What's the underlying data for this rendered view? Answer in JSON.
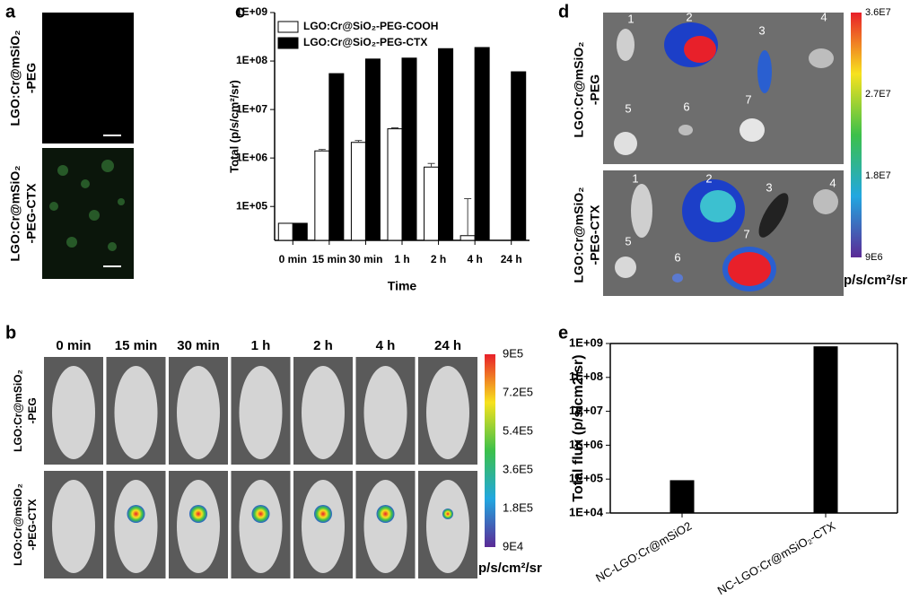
{
  "panel_labels": [
    "a",
    "b",
    "c",
    "d",
    "e"
  ],
  "panel_a": {
    "row_labels": [
      [
        "LGO:Cr@mSiO₂",
        "-PEG"
      ],
      [
        "LGO:Cr@mSiO₂",
        "-PEG-CTX"
      ]
    ]
  },
  "panel_b": {
    "columns": [
      "0 min",
      "15 min",
      "30 min",
      "1 h",
      "2 h",
      "4 h",
      "24 h"
    ],
    "row_labels": [
      [
        "LGO:Cr@mSiO₂",
        "-PEG"
      ],
      [
        "LGO:Cr@mSiO₂",
        "-PEG-CTX"
      ]
    ],
    "colorbar_ticks": [
      "9E5",
      "7.2E5",
      "5.4E5",
      "3.6E5",
      "1.8E5",
      "9E4"
    ],
    "colorbar_unit": "p/s/cm²/sr"
  },
  "panel_d": {
    "row_labels": [
      [
        "LGO:Cr@mSiO₂",
        "-PEG"
      ],
      [
        "LGO:Cr@mSiO₂",
        "-PEG-CTX"
      ]
    ],
    "organ_numbers_top": [
      "1",
      "2",
      "3",
      "4",
      "5",
      "6",
      "7"
    ],
    "organ_numbers_bottom": [
      "1",
      "2",
      "3",
      "4",
      "5",
      "6",
      "7"
    ],
    "colorbar_ticks": [
      "3.6E7",
      "2.7E7",
      "1.8E7",
      "9E6"
    ],
    "colorbar_unit": "p/s/cm²/sr"
  },
  "chart_data": [
    {
      "type": "bar",
      "log": true,
      "xlabel": "Time",
      "ylabel": "Total (p/s/cm²/sr)",
      "categories": [
        "0 min",
        "15 min",
        "30 min",
        "1 h",
        "2 h",
        "4 h",
        "24 h"
      ],
      "series": [
        {
          "name": "LGO:Cr@SiO₂-PEG-COOH",
          "color": "#ffffff",
          "values": [
            45000,
            1400000,
            2100000,
            4000000,
            650000,
            25000,
            null
          ],
          "errors": [
            null,
            100000,
            200000,
            200000,
            120000,
            120000,
            null
          ]
        },
        {
          "name": "LGO:Cr@SiO₂-PEG-CTX",
          "color": "#000000",
          "values": [
            45000,
            55000000,
            110000000,
            115000000,
            180000000,
            190000000,
            60000000
          ]
        }
      ],
      "ylim": [
        20000,
        1000000000
      ],
      "yticks": [
        {
          "value": 100000,
          "label": "1E+05"
        },
        {
          "value": 1000000,
          "label": "1E+06"
        },
        {
          "value": 10000000,
          "label": "1E+07"
        },
        {
          "value": 100000000,
          "label": "1E+08"
        },
        {
          "value": 1000000000,
          "label": "1E+09"
        }
      ],
      "legend": "upper left"
    },
    {
      "type": "bar",
      "log": true,
      "ylabel": "Total flux (p/s/cm2/sr)",
      "categories": [
        "NC-LGO:Cr@mSiO2",
        "NC-LGO:Cr@mSiO₂-CTX"
      ],
      "values": [
        90000,
        800000000
      ],
      "color": "#000000",
      "ylim": [
        10000,
        1000000000
      ],
      "yticks": [
        {
          "value": 10000,
          "label": "1E+04"
        },
        {
          "value": 100000,
          "label": "1E+05"
        },
        {
          "value": 1000000,
          "label": "1E+06"
        },
        {
          "value": 10000000,
          "label": "1E+07"
        },
        {
          "value": 100000000,
          "label": "1E+08"
        },
        {
          "value": 1000000000,
          "label": "1E+09"
        }
      ]
    }
  ]
}
